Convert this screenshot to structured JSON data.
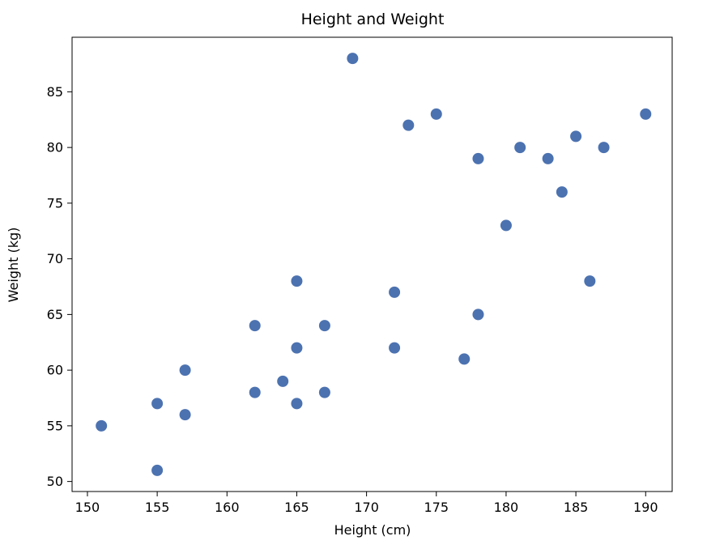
{
  "chart_data": {
    "type": "scatter",
    "title": "Height and Weight",
    "xlabel": "Height (cm)",
    "ylabel": "Weight (kg)",
    "xlim": [
      148.9,
      191.9
    ],
    "ylim": [
      49.1,
      89.9
    ],
    "xticks": [
      150,
      155,
      160,
      165,
      170,
      175,
      180,
      185,
      190
    ],
    "yticks": [
      50,
      55,
      60,
      65,
      70,
      75,
      80,
      85
    ],
    "grid": false,
    "legend": "none",
    "point_color": "#4C72B0",
    "marker_radius": 7,
    "points": [
      [
        151,
        55
      ],
      [
        155,
        57
      ],
      [
        155,
        51
      ],
      [
        157,
        60
      ],
      [
        157,
        56
      ],
      [
        162,
        64
      ],
      [
        162,
        58
      ],
      [
        164,
        59
      ],
      [
        165,
        68
      ],
      [
        165,
        62
      ],
      [
        165,
        57
      ],
      [
        167,
        64
      ],
      [
        167,
        58
      ],
      [
        169,
        88
      ],
      [
        172,
        67
      ],
      [
        172,
        62
      ],
      [
        173,
        82
      ],
      [
        175,
        83
      ],
      [
        177,
        61
      ],
      [
        178,
        79
      ],
      [
        178,
        65
      ],
      [
        180,
        73
      ],
      [
        181,
        80
      ],
      [
        183,
        79
      ],
      [
        184,
        76
      ],
      [
        185,
        81
      ],
      [
        186,
        68
      ],
      [
        187,
        80
      ],
      [
        190,
        83
      ]
    ]
  }
}
